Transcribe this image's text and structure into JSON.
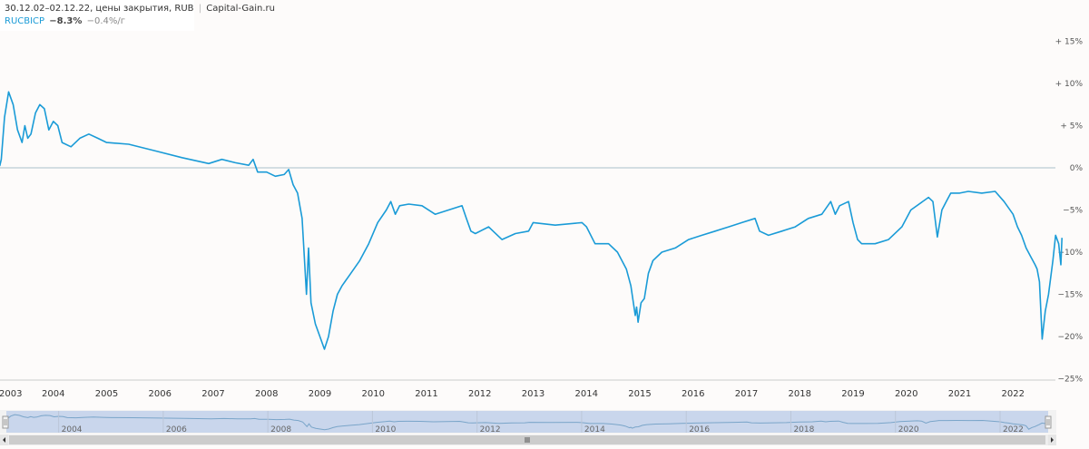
{
  "header": {
    "line1": "30.12.02–02.12.22, цены закрытия, RUB",
    "separator": "|",
    "source": "Capital-Gain.ru",
    "ticker": "RUCBICP",
    "change": "−8.3%",
    "annual": "−0.4%/г"
  },
  "colors": {
    "line": "#1a9bd7",
    "ticker": "#1a9bd7",
    "zero_line": "#a9c1c9",
    "navigator_fill": "#c9d6ec"
  },
  "chart_data": {
    "type": "line",
    "title": "",
    "xlabel": "",
    "ylabel": "",
    "x_range": [
      "2002-12-30",
      "2022-12-02"
    ],
    "ylim": [
      -25,
      15
    ],
    "y_ticks": [
      15,
      10,
      5,
      0,
      -5,
      -10,
      -15,
      -20,
      -25
    ],
    "y_tick_labels": [
      "+ 15%",
      "+ 10%",
      "+ 5%",
      "0%",
      "−5%",
      "−10%",
      "−15%",
      "−20%",
      "−25%"
    ],
    "x_ticks": [
      "2003",
      "2004",
      "2005",
      "2006",
      "2007",
      "2008",
      "2009",
      "2010",
      "2011",
      "2012",
      "2013",
      "2014",
      "2015",
      "2016",
      "2017",
      "2018",
      "2019",
      "2020",
      "2021",
      "2022"
    ],
    "grid": false,
    "series": [
      {
        "name": "RUCBICP",
        "points": [
          [
            "2002-12-30",
            0.2
          ],
          [
            "2003-01-10",
            1.0
          ],
          [
            "2003-02-01",
            6.0
          ],
          [
            "2003-03-01",
            9.0
          ],
          [
            "2003-04-01",
            7.5
          ],
          [
            "2003-05-01",
            4.5
          ],
          [
            "2003-06-01",
            3.0
          ],
          [
            "2003-06-20",
            5.0
          ],
          [
            "2003-07-10",
            3.5
          ],
          [
            "2003-08-01",
            4.0
          ],
          [
            "2003-09-01",
            6.5
          ],
          [
            "2003-10-01",
            7.5
          ],
          [
            "2003-11-01",
            7.0
          ],
          [
            "2003-12-01",
            4.5
          ],
          [
            "2004-01-01",
            5.5
          ],
          [
            "2004-02-01",
            5.0
          ],
          [
            "2004-03-01",
            3.0
          ],
          [
            "2004-05-01",
            2.5
          ],
          [
            "2004-07-01",
            3.5
          ],
          [
            "2004-09-01",
            4.0
          ],
          [
            "2004-11-01",
            3.5
          ],
          [
            "2005-01-01",
            3.0
          ],
          [
            "2005-06-01",
            2.8
          ],
          [
            "2005-12-01",
            2.0
          ],
          [
            "2006-06-01",
            1.2
          ],
          [
            "2006-12-01",
            0.5
          ],
          [
            "2007-03-01",
            1.0
          ],
          [
            "2007-06-01",
            0.6
          ],
          [
            "2007-09-01",
            0.3
          ],
          [
            "2007-10-01",
            1.0
          ],
          [
            "2007-11-01",
            -0.5
          ],
          [
            "2008-01-01",
            -0.5
          ],
          [
            "2008-03-01",
            -1.0
          ],
          [
            "2008-05-01",
            -0.8
          ],
          [
            "2008-06-01",
            -0.2
          ],
          [
            "2008-07-01",
            -2.0
          ],
          [
            "2008-08-01",
            -3.0
          ],
          [
            "2008-09-01",
            -6.0
          ],
          [
            "2008-10-01",
            -15.0
          ],
          [
            "2008-10-15",
            -9.5
          ],
          [
            "2008-11-01",
            -16.0
          ],
          [
            "2008-12-01",
            -18.5
          ],
          [
            "2009-01-01",
            -20.0
          ],
          [
            "2009-02-01",
            -21.5
          ],
          [
            "2009-03-01",
            -20.0
          ],
          [
            "2009-04-01",
            -17.0
          ],
          [
            "2009-05-01",
            -15.0
          ],
          [
            "2009-06-01",
            -14.0
          ],
          [
            "2009-08-01",
            -12.5
          ],
          [
            "2009-10-01",
            -11.0
          ],
          [
            "2009-12-01",
            -9.0
          ],
          [
            "2010-02-01",
            -6.5
          ],
          [
            "2010-04-01",
            -5.0
          ],
          [
            "2010-05-01",
            -4.0
          ],
          [
            "2010-06-01",
            -5.5
          ],
          [
            "2010-07-01",
            -4.5
          ],
          [
            "2010-09-01",
            -4.3
          ],
          [
            "2010-12-01",
            -4.5
          ],
          [
            "2011-03-01",
            -5.5
          ],
          [
            "2011-06-01",
            -5.0
          ],
          [
            "2011-09-01",
            -4.5
          ],
          [
            "2011-10-01",
            -6.0
          ],
          [
            "2011-11-01",
            -7.5
          ],
          [
            "2011-12-01",
            -7.8
          ],
          [
            "2012-03-01",
            -7.0
          ],
          [
            "2012-06-01",
            -8.5
          ],
          [
            "2012-09-01",
            -7.8
          ],
          [
            "2012-12-01",
            -7.5
          ],
          [
            "2013-01-01",
            -6.5
          ],
          [
            "2013-06-01",
            -6.8
          ],
          [
            "2013-12-01",
            -6.5
          ],
          [
            "2014-01-01",
            -7.0
          ],
          [
            "2014-03-01",
            -9.0
          ],
          [
            "2014-06-01",
            -9.0
          ],
          [
            "2014-08-01",
            -10.0
          ],
          [
            "2014-10-01",
            -12.0
          ],
          [
            "2014-11-01",
            -14.0
          ],
          [
            "2014-12-01",
            -17.5
          ],
          [
            "2014-12-10",
            -16.5
          ],
          [
            "2014-12-20",
            -18.3
          ],
          [
            "2015-01-10",
            -16.0
          ],
          [
            "2015-02-01",
            -15.5
          ],
          [
            "2015-03-01",
            -12.5
          ],
          [
            "2015-04-01",
            -11.0
          ],
          [
            "2015-06-01",
            -10.0
          ],
          [
            "2015-09-01",
            -9.5
          ],
          [
            "2015-12-01",
            -8.5
          ],
          [
            "2016-03-01",
            -8.0
          ],
          [
            "2016-06-01",
            -7.5
          ],
          [
            "2016-09-01",
            -7.0
          ],
          [
            "2016-12-01",
            -6.5
          ],
          [
            "2017-03-01",
            -6.0
          ],
          [
            "2017-04-01",
            -7.5
          ],
          [
            "2017-06-01",
            -8.0
          ],
          [
            "2017-09-01",
            -7.5
          ],
          [
            "2017-12-01",
            -7.0
          ],
          [
            "2018-03-01",
            -6.0
          ],
          [
            "2018-06-01",
            -5.5
          ],
          [
            "2018-08-01",
            -4.0
          ],
          [
            "2018-09-01",
            -5.5
          ],
          [
            "2018-10-01",
            -4.5
          ],
          [
            "2018-12-01",
            -4.0
          ],
          [
            "2019-01-01",
            -6.5
          ],
          [
            "2019-02-01",
            -8.5
          ],
          [
            "2019-03-01",
            -9.0
          ],
          [
            "2019-06-01",
            -9.0
          ],
          [
            "2019-09-01",
            -8.5
          ],
          [
            "2019-12-01",
            -7.0
          ],
          [
            "2020-02-01",
            -5.0
          ],
          [
            "2020-06-01",
            -3.5
          ],
          [
            "2020-07-01",
            -4.0
          ],
          [
            "2020-08-01",
            -8.2
          ],
          [
            "2020-09-01",
            -5.0
          ],
          [
            "2020-10-01",
            -4.0
          ],
          [
            "2020-11-01",
            -3.0
          ],
          [
            "2021-01-01",
            -3.0
          ],
          [
            "2021-03-01",
            -2.8
          ],
          [
            "2021-06-01",
            -3.0
          ],
          [
            "2021-09-01",
            -2.8
          ],
          [
            "2021-11-01",
            -4.0
          ],
          [
            "2022-01-01",
            -5.5
          ],
          [
            "2022-02-01",
            -7.0
          ],
          [
            "2022-03-01",
            -8.0
          ],
          [
            "2022-04-01",
            -9.5
          ],
          [
            "2022-05-01",
            -10.5
          ],
          [
            "2022-06-01",
            -11.5
          ],
          [
            "2022-06-15",
            -12.0
          ],
          [
            "2022-07-01",
            -13.5
          ],
          [
            "2022-07-20",
            -20.3
          ],
          [
            "2022-08-10",
            -17.0
          ],
          [
            "2022-09-01",
            -15.0
          ],
          [
            "2022-10-01",
            -11.0
          ],
          [
            "2022-10-20",
            -8.0
          ],
          [
            "2022-11-10",
            -9.0
          ],
          [
            "2022-11-25",
            -11.5
          ],
          [
            "2022-12-02",
            -8.3
          ]
        ]
      }
    ],
    "navigator": {
      "x_ticks": [
        "2004",
        "2006",
        "2008",
        "2010",
        "2012",
        "2014",
        "2016",
        "2018",
        "2020",
        "2022"
      ]
    }
  }
}
